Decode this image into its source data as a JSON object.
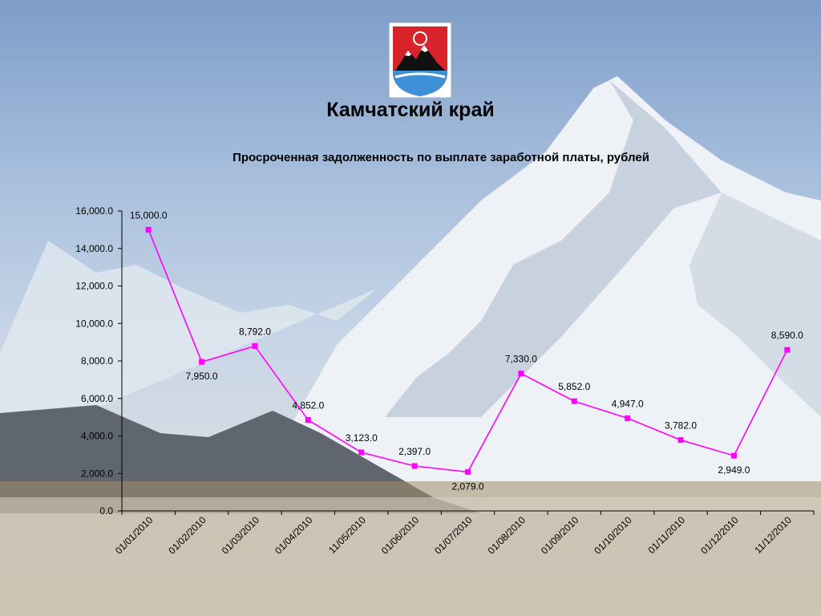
{
  "region": {
    "title": "Камчатский край"
  },
  "colors": {
    "series": "#ff00ff",
    "axis": "#000000",
    "text": "#000000"
  },
  "icons": {
    "emblem": "kamchatka-coat-of-arms-icon"
  },
  "chart_data": {
    "type": "line",
    "title": "Просроченная задолженность по выплате заработной платы, рублей",
    "xlabel": "",
    "ylabel": "",
    "ylim": [
      0,
      16000
    ],
    "yticks": [
      "0.0",
      "2,000.0",
      "4,000.0",
      "6,000.0",
      "8,000.0",
      "10,000.0",
      "12,000.0",
      "14,000.0",
      "16,000.0"
    ],
    "grid": false,
    "legend": "none",
    "categories": [
      "01/01/2010",
      "01/02/2010",
      "01/03/2010",
      "01/04/2010",
      "11/05/2010",
      "01/06/2010",
      "01/07/2010",
      "01/08/2010",
      "01/09/2010",
      "01/10/2010",
      "01/11/2010",
      "01/12/2010",
      "11/12/2010"
    ],
    "series": [
      {
        "values": [
          15000,
          7950,
          8792,
          4852,
          3123,
          2397,
          2079,
          7330,
          5852,
          4947,
          3782,
          2949,
          8590
        ],
        "labels": [
          "15,000.0",
          "7,950.0",
          "8,792.0",
          "4,852.0",
          "3,123.0",
          "2,397.0",
          "2,079.0",
          "7,330.0",
          "5,852.0",
          "4,947.0",
          "3,782.0",
          "2,949.0",
          "8,590.0"
        ]
      }
    ]
  }
}
